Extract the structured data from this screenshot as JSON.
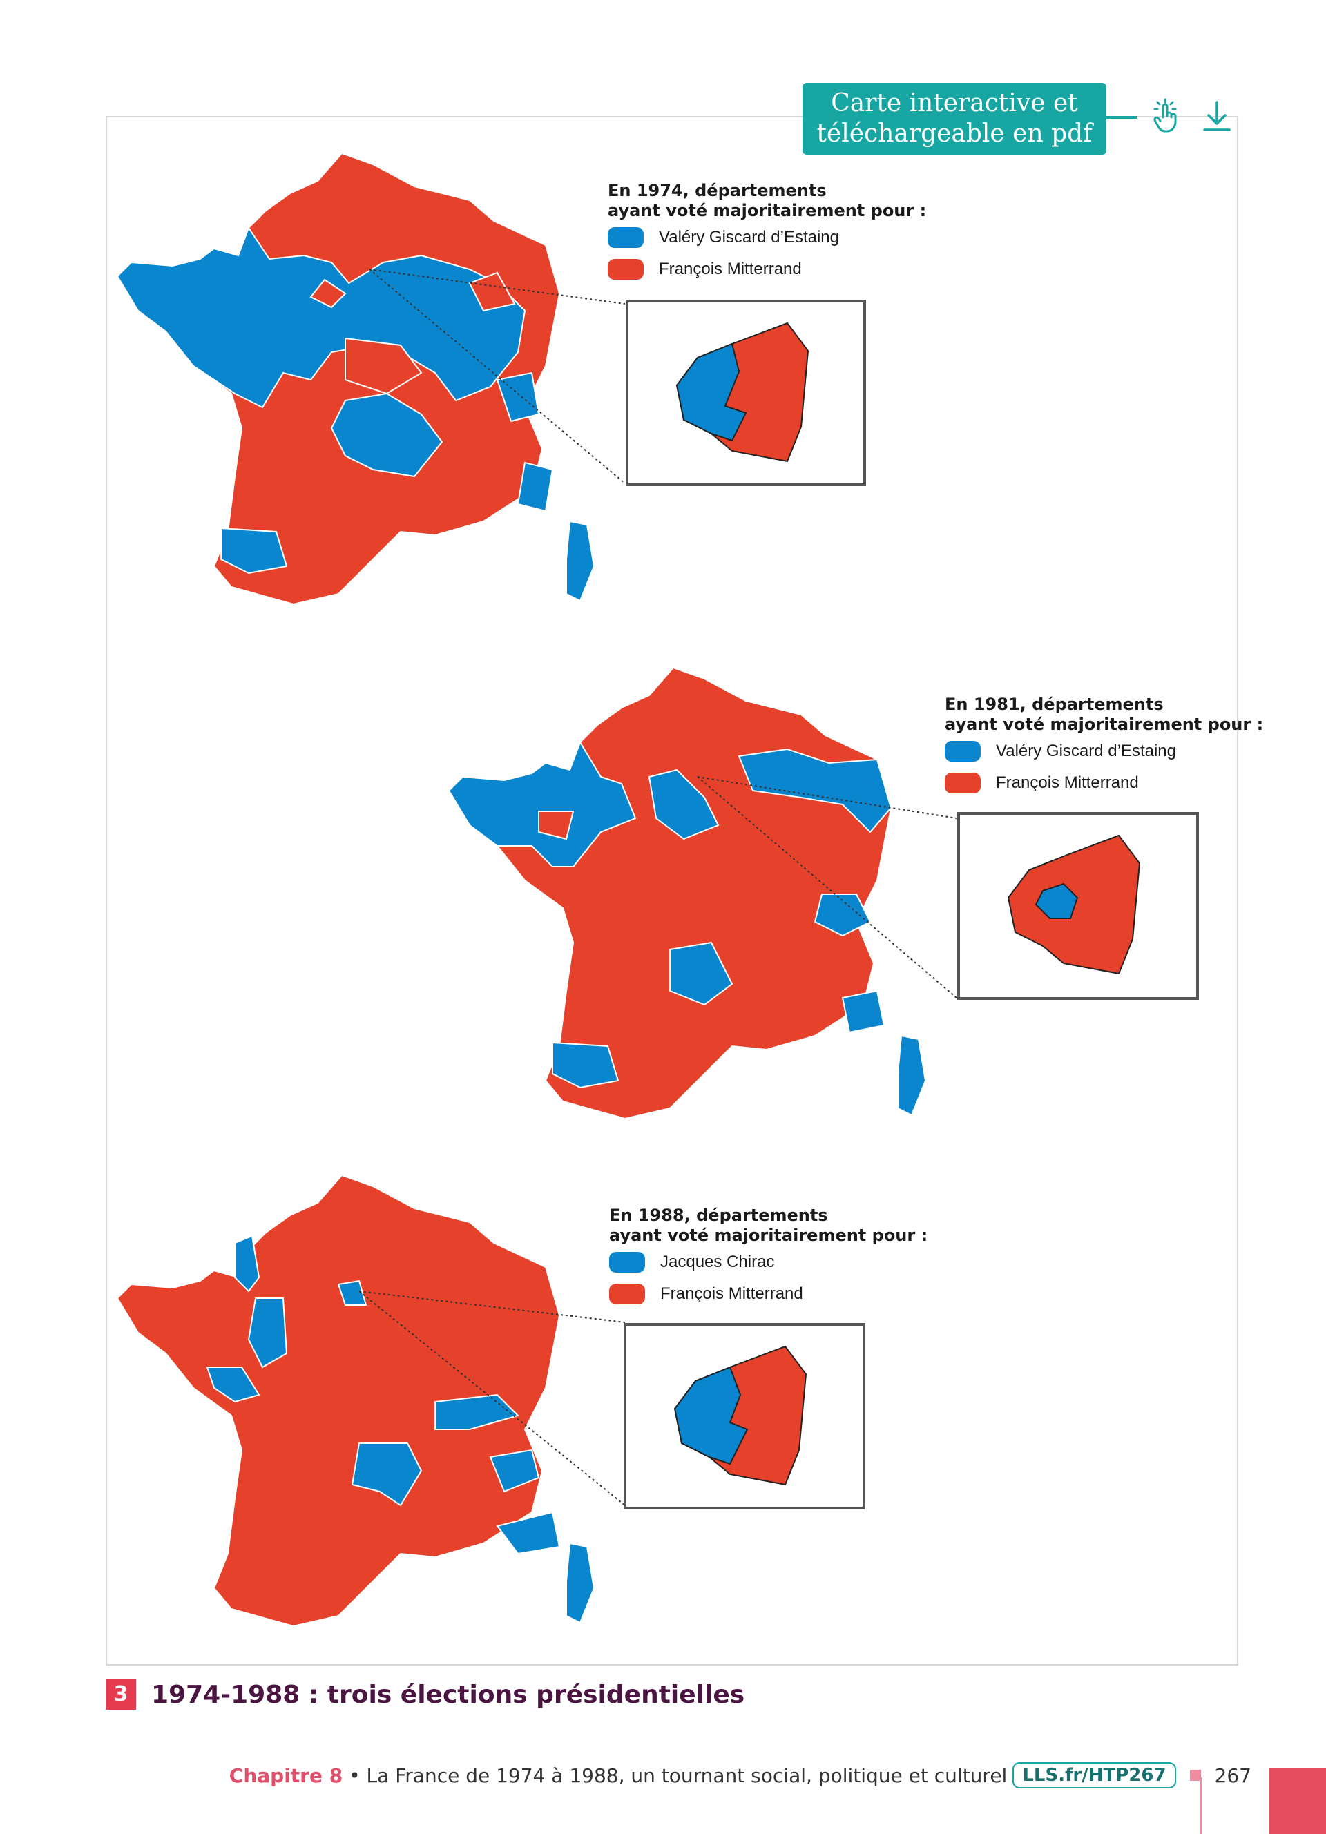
{
  "badge": {
    "line1": "Carte interactive et",
    "line2": "téléchargeable en pdf"
  },
  "icons": {
    "interact": "touch-hand-icon",
    "download": "download-arrow-icon"
  },
  "colors": {
    "blue": "#0a86cf",
    "red": "#e5412b",
    "accent": "#17a6a2"
  },
  "maps": [
    {
      "legend_title_1": "En 1974, départements",
      "legend_title_2": "ayant voté majoritairement pour :",
      "blue_label": "Valéry Giscard d’Estaing",
      "red_label": "François Mitterrand"
    },
    {
      "legend_title_1": "En 1981, départements",
      "legend_title_2": "ayant voté majoritairement pour :",
      "blue_label": "Valéry Giscard d’Estaing",
      "red_label": "François Mitterrand"
    },
    {
      "legend_title_1": "En 1988, départements",
      "legend_title_2": "ayant voté majoritairement pour :",
      "blue_label": "Jacques Chirac",
      "red_label": "François Mitterrand"
    }
  ],
  "caption": {
    "number": "3",
    "text": "1974-1988 : trois élections présidentielles"
  },
  "footer": {
    "chapter": "Chapitre 8",
    "separator": " • ",
    "title": "La France de 1974 à 1988, un tournant social, politique et culturel",
    "link": "LLS.fr/HTP267",
    "page": "267"
  }
}
